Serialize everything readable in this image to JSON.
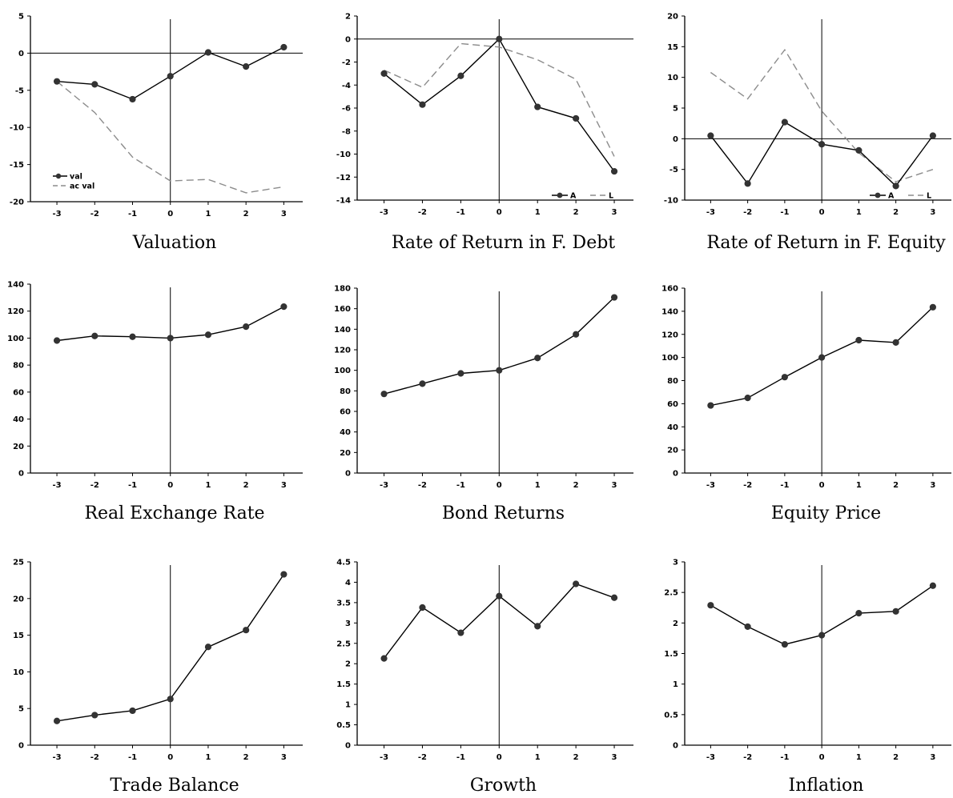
{
  "chart_data": [
    {
      "type": "line",
      "caption": "Valuation",
      "x": [
        -3,
        -2,
        -1,
        0,
        1,
        2,
        3
      ],
      "ylim": [
        -20,
        5
      ],
      "yticks": [
        5,
        0,
        -5,
        -10,
        -15,
        -20
      ],
      "ytick_labels": [
        "5",
        "0",
        "-5",
        "-10",
        "-15",
        "-20"
      ],
      "series": [
        {
          "name": "val",
          "style": "solid-markers",
          "values": [
            -3.8,
            -4.2,
            -6.2,
            -3.1,
            0.1,
            -1.8,
            0.8
          ]
        },
        {
          "name": "ac val",
          "style": "dashed",
          "values": [
            -3.8,
            -8.0,
            -14.0,
            -17.2,
            -17.0,
            -18.8,
            -18.0
          ]
        }
      ],
      "legend": "bottom-left",
      "zero_line": true
    },
    {
      "type": "line",
      "caption": "Rate of Return in F. Debt",
      "x": [
        -3,
        -2,
        -1,
        0,
        1,
        2,
        3
      ],
      "ylim": [
        -14,
        2
      ],
      "yticks": [
        2,
        0,
        -2,
        -4,
        -6,
        -8,
        -10,
        -12,
        -14
      ],
      "ytick_labels": [
        "2",
        "0",
        "-2",
        "-4",
        "-6",
        "-8",
        "-10",
        "-12",
        "-14"
      ],
      "series": [
        {
          "name": "A",
          "style": "solid-markers",
          "values": [
            -3.0,
            -5.7,
            -3.2,
            0.0,
            -5.9,
            -6.9,
            -11.5
          ]
        },
        {
          "name": "L",
          "style": "dashed",
          "values": [
            -2.7,
            -4.2,
            -0.4,
            -0.7,
            -1.8,
            -3.5,
            -10.2
          ]
        }
      ],
      "legend": "bottom-right",
      "zero_line": true
    },
    {
      "type": "line",
      "caption": "Rate of Return in F. Equity",
      "x": [
        -3,
        -2,
        -1,
        0,
        1,
        2,
        3
      ],
      "ylim": [
        -10,
        20
      ],
      "yticks": [
        20,
        15,
        10,
        5,
        0,
        -5,
        -10
      ],
      "ytick_labels": [
        "20",
        "15",
        "10",
        "5",
        "0",
        "-5",
        "-10"
      ],
      "series": [
        {
          "name": "A",
          "style": "solid-markers",
          "values": [
            0.5,
            -7.3,
            2.7,
            -0.9,
            -1.9,
            -7.7,
            0.5
          ]
        },
        {
          "name": "L",
          "style": "dashed",
          "values": [
            10.8,
            6.5,
            14.5,
            4.5,
            -2.3,
            -7.0,
            -5.0
          ]
        }
      ],
      "legend": "bottom-right",
      "zero_line": true
    },
    {
      "type": "line",
      "caption": "Real Exchange Rate",
      "x": [
        -3,
        -2,
        -1,
        0,
        1,
        2,
        3
      ],
      "ylim": [
        0,
        140
      ],
      "yticks": [
        140,
        120,
        100,
        80,
        60,
        40,
        20,
        0
      ],
      "ytick_labels": [
        "140",
        "120",
        "100",
        "80",
        "60",
        "40",
        "20",
        "0"
      ],
      "series": [
        {
          "style": "solid-markers",
          "values": [
            98.2,
            101.6,
            101.0,
            100.0,
            102.5,
            108.5,
            123.3
          ]
        }
      ],
      "zero_line": false
    },
    {
      "type": "line",
      "caption": "Bond Returns",
      "x": [
        -3,
        -2,
        -1,
        0,
        1,
        2,
        3
      ],
      "ylim": [
        0,
        180
      ],
      "yticks": [
        180,
        160,
        140,
        120,
        100,
        80,
        60,
        40,
        20,
        0
      ],
      "ytick_labels": [
        "180",
        "160",
        "140",
        "120",
        "100",
        "80",
        "60",
        "40",
        "20",
        "0"
      ],
      "series": [
        {
          "style": "solid-markers",
          "values": [
            77.0,
            87.0,
            97.0,
            100.0,
            112.0,
            135.0,
            171.0
          ]
        }
      ],
      "zero_line": false
    },
    {
      "type": "line",
      "caption": "Equity Price",
      "x": [
        -3,
        -2,
        -1,
        0,
        1,
        2,
        3
      ],
      "ylim": [
        0,
        160
      ],
      "yticks": [
        160,
        140,
        120,
        100,
        80,
        60,
        40,
        20,
        0
      ],
      "ytick_labels": [
        "160",
        "140",
        "120",
        "100",
        "80",
        "60",
        "40",
        "20",
        "0"
      ],
      "series": [
        {
          "style": "solid-markers",
          "values": [
            58.5,
            65.0,
            83.0,
            100.0,
            115.0,
            113.0,
            143.5
          ]
        }
      ],
      "zero_line": false
    },
    {
      "type": "line",
      "caption": "Trade Balance",
      "x": [
        -3,
        -2,
        -1,
        0,
        1,
        2,
        3
      ],
      "ylim": [
        0,
        25
      ],
      "yticks": [
        25,
        20,
        15,
        10,
        5,
        0
      ],
      "ytick_labels": [
        "25",
        "20",
        "15",
        "10",
        "5",
        "0"
      ],
      "series": [
        {
          "style": "solid-markers",
          "values": [
            3.3,
            4.1,
            4.7,
            6.3,
            13.4,
            15.7,
            23.3
          ]
        }
      ],
      "zero_line": false
    },
    {
      "type": "line",
      "caption": "Growth",
      "x": [
        -3,
        -2,
        -1,
        0,
        1,
        2,
        3
      ],
      "ylim": [
        0,
        4.5
      ],
      "yticks": [
        4.5,
        4,
        3.5,
        3,
        2.5,
        2,
        1.5,
        1,
        0.5,
        0
      ],
      "ytick_labels": [
        "4.5",
        "4",
        "3.5",
        "3",
        "2.5",
        "2",
        "1.5",
        "1",
        "0.5",
        "0"
      ],
      "series": [
        {
          "style": "solid-markers",
          "values": [
            2.13,
            3.38,
            2.76,
            3.66,
            2.92,
            3.96,
            3.62
          ]
        }
      ],
      "zero_line": false
    },
    {
      "type": "line",
      "caption": "Inflation",
      "x": [
        -3,
        -2,
        -1,
        0,
        1,
        2,
        3
      ],
      "ylim": [
        0,
        3
      ],
      "yticks": [
        3,
        2.5,
        2,
        1.5,
        1,
        0.5,
        0
      ],
      "ytick_labels": [
        "3",
        "2.5",
        "2",
        "1.5",
        "1",
        "0.5",
        "0"
      ],
      "series": [
        {
          "style": "solid-markers",
          "values": [
            2.29,
            1.94,
            1.65,
            1.8,
            2.16,
            2.19,
            2.61
          ]
        }
      ],
      "zero_line": false
    }
  ],
  "colors": {
    "line": "#000000",
    "marker": "#333333",
    "dashed": "#8c8c8c",
    "axis": "#000000"
  }
}
